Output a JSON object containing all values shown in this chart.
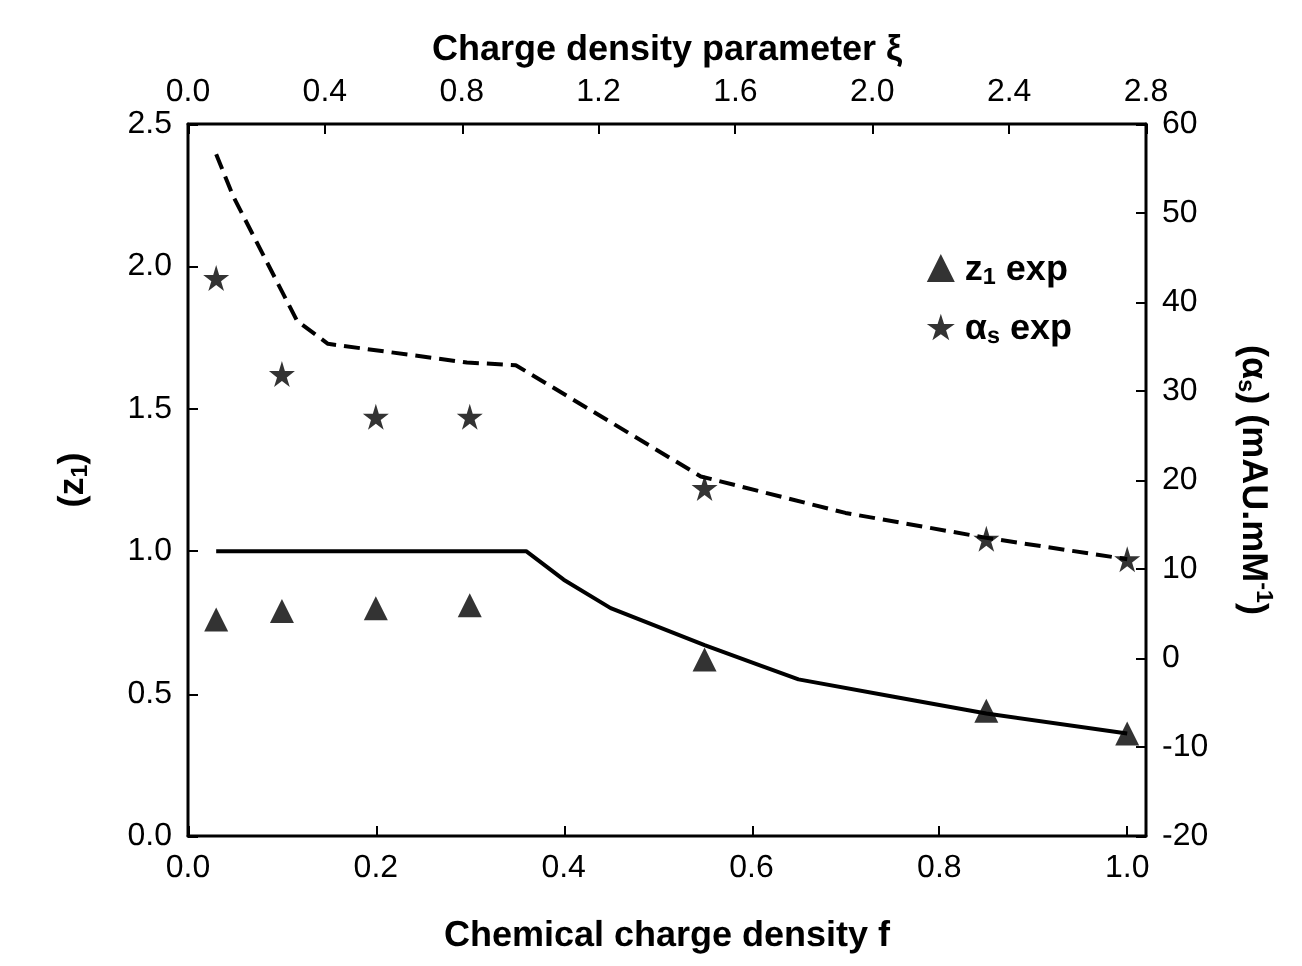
{
  "chart_data": {
    "type": "scatter",
    "xlabel": "Chemical charge density f",
    "ylabel": "(z$_{1}$)",
    "y2label": "(α$_{s}$) (mAU.mM$^{-1}$)",
    "x2label": "Charge density parameter ξ",
    "xlim": [
      0,
      1.02
    ],
    "xticks": [
      {
        "value": 0,
        "label": "0.0"
      },
      {
        "value": 0.2,
        "label": "0.2"
      },
      {
        "value": 0.4,
        "label": "0.4"
      },
      {
        "value": 0.6,
        "label": "0.6"
      },
      {
        "value": 0.8,
        "label": "0.8"
      },
      {
        "value": 1,
        "label": "1.0"
      }
    ],
    "x2lim": [
      0,
      2.8
    ],
    "x2ticks": [
      {
        "value": 0,
        "label": "0.0"
      },
      {
        "value": 0.4,
        "label": "0.4"
      },
      {
        "value": 0.8,
        "label": "0.8"
      },
      {
        "value": 1.2,
        "label": "1.2"
      },
      {
        "value": 1.6,
        "label": "1.6"
      },
      {
        "value": 2,
        "label": "2.0"
      },
      {
        "value": 2.4,
        "label": "2.4"
      },
      {
        "value": 2.8,
        "label": "2.8"
      }
    ],
    "ylim": [
      0,
      2.5
    ],
    "yticks": [
      {
        "value": 0,
        "label": "0.0"
      },
      {
        "value": 0.5,
        "label": "0.5"
      },
      {
        "value": 1,
        "label": "1.0"
      },
      {
        "value": 1.5,
        "label": "1.5"
      },
      {
        "value": 2,
        "label": "2.0"
      },
      {
        "value": 2.5,
        "label": "2.5"
      }
    ],
    "y2lim": [
      -20,
      60
    ],
    "y2ticks": [
      -20,
      -10,
      0,
      10,
      20,
      30,
      40,
      50,
      60
    ],
    "grid": false,
    "legend": "top right",
    "series": [
      {
        "name": "z$_{1}$ exp",
        "marker": "triangle",
        "color": "#000000",
        "x": [
          0.03,
          0.1,
          0.2,
          0.3,
          0.55,
          0.85,
          1.0
        ],
        "values": [
          0.76,
          0.79,
          0.8,
          0.81,
          0.62,
          0.44,
          0.36
        ]
      },
      {
        "name": "α$_{s}$ exp",
        "marker": "star",
        "axis": "y2",
        "color": "#000000",
        "x": [
          0.03,
          0.1,
          0.2,
          0.3,
          0.55,
          0.85,
          1.0
        ],
        "values": [
          42.7,
          31.9,
          27.1,
          27.1,
          19.1,
          13.4,
          11.1
        ]
      },
      {
        "type": "line",
        "line_style": "solid",
        "marker": "none",
        "color": "#000000",
        "x": [
          0.03,
          0.36,
          0.4,
          0.45,
          0.55,
          0.65,
          0.75,
          0.85,
          1.0
        ],
        "values": [
          1.0,
          1.0,
          0.9,
          0.8,
          0.67,
          0.55,
          0.49,
          0.43,
          0.36
        ]
      },
      {
        "type": "line",
        "line_style": "dashed",
        "marker": "none",
        "axis": "y2",
        "color": "#000000",
        "x": [
          0.03,
          0.048,
          0.116,
          0.149,
          0.297,
          0.349,
          0.45,
          0.546,
          0.7,
          0.85,
          1.0
        ],
        "values": [
          56.6,
          51.9,
          37.9,
          35.3,
          33.2,
          32.9,
          26.5,
          20.4,
          16.3,
          13.5,
          11.1
        ]
      }
    ]
  }
}
